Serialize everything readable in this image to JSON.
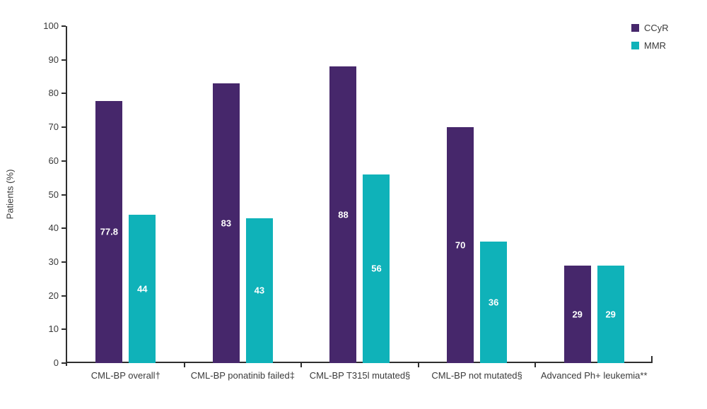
{
  "chart_data": {
    "type": "bar",
    "title": "",
    "ylabel": "Patients (%)",
    "ylim": [
      0,
      100
    ],
    "ytick_step": 10,
    "grid": false,
    "legend_position": "top-right",
    "categories": [
      "CML-BP overall†",
      "CML-BP ponatinib failed‡",
      "CML-BP T315l mutated§",
      "CML-BP not mutated§",
      "Advanced Ph+ leukemia**"
    ],
    "series": [
      {
        "name": "CCyR",
        "color": "#46276b",
        "values": [
          77.8,
          83,
          88,
          70,
          29
        ]
      },
      {
        "name": "MMR",
        "color": "#0fb2b9",
        "values": [
          44,
          43,
          56,
          36,
          29
        ]
      }
    ]
  },
  "colors": {
    "axis": "#2e2e2e",
    "text": "#3a3a3a",
    "bar_value_label": "#ffffff"
  }
}
